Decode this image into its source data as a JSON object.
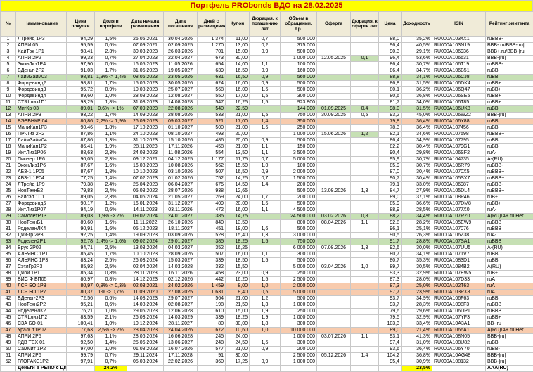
{
  "title": "Портфель PRObonds ВДО на 28.02.2025",
  "columns": [
    "№",
    "Наименование",
    "Цена покупки",
    "Доля в портфеле",
    "Дата начала размещения",
    "Дата погашения",
    "Дней с размещения",
    "Купон",
    "Дюрация, к погашению лет",
    "Объем в обращении, т.р.",
    "Оферта",
    "Дюрация, к оферте лет",
    "Цена",
    "Доходность",
    "ISIN",
    "Рейтинг эмитента"
  ],
  "column_keys": [
    "num",
    "name",
    "buy-price",
    "share",
    "start-date",
    "maturity-date",
    "days",
    "coupon",
    "duration-maturity",
    "volume",
    "offer",
    "duration-offer",
    "price",
    "yield",
    "isin",
    "rating"
  ],
  "rows": [
    [
      "1",
      "ЛТрейд 1Р3",
      "94,29",
      "1,5%",
      "26.05.2021",
      "30.04.2026",
      "1 374",
      "11,00",
      "0,7",
      "500 000",
      "",
      "",
      "88,0",
      "35,2%",
      "RU000A1034X1",
      "ruBBB-"
    ],
    [
      "2",
      "АПРИ 05",
      "95,59",
      "0,6%",
      "07.09.2021",
      "02.09.2025",
      "1 270",
      "13,00",
      "0,2",
      "375 000",
      "",
      "",
      "96,4",
      "40,5%",
      "RU000A103N19",
      "BBB-.ru/BBB-|ru|"
    ],
    [
      "3",
      "ХайТэк 1Р1",
      "98,41",
      "2,3%",
      "30.03.2023",
      "26.03.2026",
      "701",
      "15,00",
      "0,9",
      "500 000",
      "",
      "",
      "90,3",
      "29,1%",
      "RU000A106936",
      "BBB+.ru/BBB-|ru|"
    ],
    [
      "4",
      "АПРИ 2Р2",
      "99,33",
      "0,7%",
      "27.04.2023",
      "22.04.2027",
      "673",
      "30,00",
      "",
      "1 000 000",
      "12.05.2025",
      "0,1",
      "96,4",
      "53,6%",
      "RU000A106631",
      "BBB-|ru|"
    ],
    [
      "5",
      "ЭконЛиз1Р4",
      "97,90",
      "0,6%",
      "16.05.2023",
      "11.05.2026",
      "654",
      "14,00",
      "1,1",
      "100 000",
      "",
      "",
      "86,4",
      "30,7%",
      "RU000A106T19",
      "ruBBB-"
    ],
    [
      "6",
      "БДеньг-2Р2",
      "91,03",
      "1,7%",
      "31.05.2023",
      "19.05.2027",
      "639",
      "16,50",
      "0,9",
      "160 000",
      "",
      "",
      "86,4",
      "34,7%",
      "RU000A106B51",
      "ruBB"
    ],
    [
      "7",
      "ЛаймЗайм03",
      "98,81",
      "1,3% -> 1,4%",
      "08.06.2023",
      "23.05.2026",
      "631",
      "16,50",
      "0,9",
      "560 000",
      "",
      "",
      "88,8",
      "34,1%",
      "RU000A106CJ8",
      "ruBB"
    ],
    [
      "8",
      "Фордевинд2",
      "98,81",
      "1,7%",
      "15.06.2023",
      "30.05.2026",
      "624",
      "16,00",
      "0,9",
      "500 000",
      "",
      "",
      "86,8",
      "31,5%",
      "RU000A106DK4",
      "ruBB+"
    ],
    [
      "9",
      "Фордевинд3",
      "95,72",
      "0,9%",
      "10.08.2023",
      "25.07.2027",
      "568",
      "16,00",
      "1,5",
      "500 000",
      "",
      "",
      "80,1",
      "36,2%",
      "RU000A106Q47",
      "ruBB+"
    ],
    [
      "10",
      "Фордевинд4",
      "89,60",
      "1,0%",
      "28.08.2023",
      "12.08.2027",
      "550",
      "17,00",
      "1,5",
      "300 000",
      "",
      "",
      "80,6",
      "36,8%",
      "RU000A106SE5",
      "ruBB+"
    ],
    [
      "11",
      "CTRLлиз1П1",
      "93,29",
      "1,8%",
      "31.08.2023",
      "14.08.2028",
      "547",
      "16,25",
      "1,5",
      "923 800",
      "",
      "",
      "81,7",
      "34,0%",
      "RU000A106T85",
      "ruBB+"
    ],
    [
      "12",
      "МигКр 03",
      "89,01",
      "0,6% -> 1%",
      "07.09.2023",
      "22.08.2026",
      "540",
      "22,50",
      "",
      "144 000",
      "01.09.2025",
      "0,4",
      "98,0",
      "31,5%",
      "RU000A106UK8",
      "ruBB"
    ],
    [
      "13",
      "АПРИ 2Р3",
      "93,22",
      "1,7%",
      "14.09.2023",
      "28.08.2026",
      "533",
      "21,00",
      "1,5",
      "750 000",
      "30.09.2025",
      "0,5",
      "93,2",
      "45,0%",
      "RU000A106WZ2",
      "BBB-|ru|"
    ],
    [
      "14",
      "ВЭББНКР 04",
      "80,86",
      "2,2% -> 1,9%",
      "26.09.2023",
      "09.03.2027",
      "521",
      "17,00",
      "1,4",
      "350 000",
      "",
      "",
      "79,8",
      "36,4%",
      "RU000A106Y88",
      "ruBB"
    ],
    [
      "15",
      "МаниКап1Р3",
      "90,46",
      "1,8%",
      "17.10.2023",
      "01.10.2027",
      "500",
      "21,00",
      "1,5",
      "250 000",
      "",
      "",
      "78,3",
      "36,4%",
      "RU000A107456",
      "ruBB"
    ],
    [
      "16",
      "ПР-Лиз 2Р2",
      "87,86",
      "1,1%",
      "24.10.2023",
      "08.10.2027",
      "493",
      "20,00",
      "",
      "1 000 000",
      "15.06.2026",
      "1,2",
      "82,1",
      "34,6%",
      "RU000A107598",
      "ruBBB+"
    ],
    [
      "17",
      "ЛаймЗайм04",
      "87,86",
      "1,3%",
      "31.10.2023",
      "15.10.2026",
      "486",
      "20,00",
      "0,9",
      "500 000",
      "",
      "",
      "86,4",
      "34,9%",
      "RU000A107795",
      "ruBB"
    ],
    [
      "18",
      "МаниКап1Р2",
      "86,41",
      "1,9%",
      "28.11.2023",
      "17.11.2026",
      "458",
      "21,00",
      "1,1",
      "150 000",
      "",
      "",
      "82,2",
      "30,4%",
      "RU000A1079G1",
      "ruBB"
    ],
    [
      "19",
      "ИнтЛиз1Р06",
      "88,63",
      "2,3%",
      "24.08.2023",
      "11.08.2026",
      "554",
      "13,50",
      "1,1",
      "3 500 000",
      "",
      "",
      "90,4",
      "29,8%",
      "RU000A106SF2",
      "ruA-"
    ],
    [
      "20",
      "Пионер 1Р6",
      "90,05",
      "2,3%",
      "09.12.2021",
      "04.12.2025",
      "1 177",
      "11,75",
      "0,7",
      "5 000 000",
      "",
      "",
      "95,9",
      "30,7%",
      "RU000A104735",
      "A-(RU)"
    ],
    [
      "21",
      "ЭконЛиз1Р6",
      "87,67",
      "1,6%",
      "16.08.2023",
      "10.08.2026",
      "562",
      "15,50",
      "1,0",
      "100 000",
      "",
      "",
      "85,9",
      "30,7%",
      "RU000A106R79",
      "ruBBB-"
    ],
    [
      "22",
      "АБЗ-1 1Р05",
      "87,67",
      "1,8%",
      "10.10.2023",
      "03.10.2026",
      "507",
      "16,50",
      "0,9",
      "2 000 000",
      "",
      "",
      "87,0",
      "30,4%",
      "RU000A1070X5",
      "ruBBB+"
    ],
    [
      "23",
      "АБЗ-1 1Р04",
      "77,25",
      "1,4%",
      "07.02.2023",
      "01.02.2026",
      "752",
      "14,25",
      "0,7",
      "1 500 000",
      "",
      "",
      "90,7",
      "30,4%",
      "RU000A105SX7",
      "ruBBB+"
    ],
    [
      "24",
      "ЛТрейд 1Р9",
      "79,38",
      "2,4%",
      "25.04.2023",
      "06.04.2027",
      "675",
      "14,50",
      "1,4",
      "200 000",
      "",
      "",
      "79,1",
      "33,0%",
      "RU000A106987",
      "ruBBB-"
    ],
    [
      "25",
      "НовТехнБ2",
      "79,83",
      "2,4%",
      "05.08.2022",
      "28.07.2026",
      "938",
      "12,65",
      "",
      "500 000",
      "13.08.2026",
      "1,3",
      "84,7",
      "27,9%",
      "RU000A105DL4",
      "ruBBB+"
    ],
    [
      "26",
      "Байсэл 1П1",
      "89,05",
      "2,3%",
      "04.06.2024",
      "21.05.2027",
      "269",
      "24,00",
      "1,7",
      "200 000",
      "",
      "",
      "89,0",
      "37,1%",
      "RU000A108P46",
      "ruB+"
    ],
    [
      "27",
      "Фордевинд5",
      "90,17",
      "1,2%",
      "16.01.2024",
      "31.12.2027",
      "409",
      "20,00",
      "1,5",
      "500 000",
      "",
      "",
      "85,9",
      "36,6%",
      "RU000A107DM8",
      "ruBB+"
    ],
    [
      "28",
      "ИнтЛиз1Р07",
      "94,19",
      "0,6%",
      "14.11.2023",
      "03.11.2026",
      "472",
      "16,00",
      "1,1",
      "4 500 000",
      "",
      "",
      "88,9",
      "28,5%",
      "RU000A1077X0",
      "ruA-"
    ],
    [
      "29",
      "СамолетР13",
      "89,03",
      "1,9% -> 2%",
      "09.02.2024",
      "24.01.2027",
      "385",
      "14,75",
      "",
      "24 500 000",
      "03.02.2026",
      "0,8",
      "88,2",
      "34,4%",
      "RU000A107RZ0",
      "A(RU)/A+.ru Нег."
    ],
    [
      "30",
      "НовТехнБ1",
      "89,60",
      "1,6%",
      "11.11.2022",
      "26.10.2026",
      "840",
      "13,50",
      "",
      "800 000",
      "08.04.2026",
      "1,1",
      "92,8",
      "28,2%",
      "RU000A105EW9",
      "ruBBB+"
    ],
    [
      "31",
      "РоделенЛК4",
      "90,91",
      "1,6%",
      "05.12.2023",
      "18.11.2027",
      "451",
      "18,00",
      "1,6",
      "500 000",
      "",
      "",
      "96,1",
      "25,1%",
      "RU000A107076",
      "ruBBB"
    ],
    [
      "32",
      "Джи-гр 2Р3",
      "92,25",
      "1,4%",
      "19.09.2023",
      "03.09.2026",
      "528",
      "15,40",
      "1,3",
      "3 000 000",
      "",
      "",
      "90,5",
      "26,3%",
      "RU000A106Z38",
      "ruA-"
    ],
    [
      "33",
      "Роделен2Р1",
      "92,78",
      "1,4% -> 1,6%",
      "09.02.2024",
      "29.01.2027",
      "385",
      "18,25",
      "1,5",
      "750 000",
      "",
      "",
      "91,7",
      "28,8%",
      "RU000A107SA1",
      "ruBBB"
    ],
    [
      "34",
      "Брус 2Р02",
      "94,71",
      "2,5%",
      "13.03.2024",
      "04.03.2027",
      "352",
      "16,25",
      "",
      "6 000 000",
      "07.08.2026",
      "1,3",
      "92,6",
      "30,0%",
      "RU000A107UU5",
      "A-(RU)"
    ],
    [
      "35",
      "АЛЬЯНС 1Р1",
      "85,45",
      "1,7%",
      "10.10.2023",
      "28.09.2026",
      "507",
      "16,00",
      "1,1",
      "300 000",
      "",
      "",
      "80,7",
      "34,1%",
      "RU000A1071V7",
      "ruBB"
    ],
    [
      "36",
      "АЛЬЯНС 1Р3",
      "83,24",
      "2,5%",
      "26.03.2024",
      "15.03.2027",
      "339",
      "18,50",
      "1,5",
      "500 000",
      "",
      "",
      "80,7",
      "35,3%",
      "RU000A1083D1",
      "ruBB"
    ],
    [
      "37",
      "СэтлГр2Р3",
      "85,92",
      "2,5%",
      "02.04.2024",
      "14.03.2028",
      "332",
      "15,50",
      "",
      "5 000 000",
      "03.04.2026",
      "1,0",
      "89,7",
      "30,5%",
      "RU000A1084B2",
      "A(RU)"
    ],
    [
      "38",
      "Джой 1Р1",
      "85,34",
      "0,8%",
      "28.11.2023",
      "16.11.2026",
      "458",
      "23,00",
      "0,9",
      "250 000",
      "",
      "",
      "93,3",
      "32,9%",
      "RU000A107EW5",
      "ruB+"
    ],
    [
      "39",
      "ВИС Ф БП05",
      "80,97",
      "0,8%",
      "14.12.2023",
      "02.12.2026",
      "442",
      "16,20",
      "1,5",
      "2 500 000",
      "",
      "",
      "87,3",
      "28,0%",
      "RU000A107D33",
      "ruA"
    ],
    [
      "40",
      "ЛСР БО 1Р8",
      "80,97",
      "0,8% -> 0,3%",
      "02.03.2021",
      "24.02.2026",
      "1 459",
      "8,00",
      "1,0",
      "2 000 000",
      "",
      "",
      "87,3",
      "25,0%",
      "RU000A102T63",
      "ruA"
    ],
    [
      "41",
      "ЛСР БО 1Р7",
      "80,37",
      "1% -> 0,7%",
      "11.09.2020",
      "27.08.2025",
      "1 631",
      "8,40",
      "0,5",
      "5 000 000",
      "",
      "",
      "97,7",
      "23,9%",
      "RU000A103PX8",
      "ruA"
    ],
    [
      "42",
      "БДеньг-2Р3",
      "72,56",
      "0,6%",
      "14.08.2023",
      "29.07.2027",
      "564",
      "21,00",
      "1,2",
      "500 000",
      "",
      "",
      "93,7",
      "34,9%",
      "RU000A106F63",
      "ruBB"
    ],
    [
      "43",
      "НовТехн2Р2",
      "95,21",
      "0,6%",
      "14.08.2024",
      "02.08.2027",
      "198",
      "21,50",
      "1,3",
      "1 000 000",
      "",
      "",
      "93,7",
      "28,3%",
      "RU000A1098F3",
      "ruBBB+"
    ],
    [
      "44",
      "РоделенЛК2",
      "76,21",
      "1,0%",
      "29.06.2023",
      "12.06.2028",
      "610",
      "15,00",
      "1,9",
      "250 000",
      "",
      "",
      "79,6",
      "29,6%",
      "RU000A106DP1",
      "ruBBB"
    ],
    [
      "45",
      "CTRLлиз1П2",
      "83,59",
      "2,1%",
      "26.03.2024",
      "14.03.2029",
      "339",
      "18,25",
      "1,9",
      "1 000 000",
      "",
      "",
      "79,5",
      "32,9%",
      "RU000A107YF3",
      "ruBB+"
    ],
    [
      "46",
      "СЗА БО-01",
      "100,41",
      "1,0%",
      "10.12.2024",
      "28.11.2027",
      "80",
      "30,00",
      "1,8",
      "300 000",
      "",
      "",
      "103,3",
      "33,4%",
      "RU000A10A3A1",
      "BB-.ru"
    ],
    [
      "47",
      "УралСт1Р02",
      "77,63",
      "2,5% -> 2%",
      "28.04.2023",
      "24.04.2026",
      "672",
      "10,60",
      "1,0",
      "10 000 000",
      "",
      "",
      "89,0",
      "21,4%",
      "RU000A1066A1",
      "A(RU)/A+.ru Нег."
    ],
    [
      "48",
      "АПРИ 2Р5",
      "97,63",
      "1,1%",
      "28.06.2024",
      "16.06.2028",
      "245",
      "24,00",
      "",
      "1 000 000",
      "03.07.2026",
      "1,1",
      "93,1",
      "41,3%",
      "RU000A108N05",
      "BBB-|ru|"
    ],
    [
      "49",
      "РДВ ТЕХ 01",
      "92,50",
      "1,4%",
      "25.06.2024",
      "13.06.2027",
      "248",
      "24,50",
      "1,5",
      "300 000",
      "",
      "",
      "97,4",
      "31,0%",
      "RU000A108U82",
      "ruBB"
    ],
    [
      "50",
      "Саммит 1Р2",
      "97,00",
      "1,0%",
      "01.08.2023",
      "16.07.2026",
      "577",
      "21,00",
      "0,9",
      "200 000",
      "",
      "",
      "93,6",
      "36,4%",
      "RU000A106Y70",
      "ruBB-"
    ],
    [
      "51",
      "АПРИ 2Р6",
      "99,79",
      "0,7%",
      "29.11.2024",
      "17.11.2028",
      "91",
      "30,00",
      "",
      "2 500 000",
      "05.12.2026",
      "1,4",
      "104,2",
      "36,8%",
      "RU000A10AG48",
      "BBB-|ru|"
    ],
    [
      "52",
      "ГЛОРАКС1Р2",
      "97,91",
      "0,7%",
      "05.03.2024",
      "22.02.2026",
      "360",
      "17,25",
      "0,9",
      "1 000 000",
      "",
      "",
      "95,4",
      "30,9%",
      "RU000A108132",
      "BBB-|ru|"
    ]
  ],
  "footer": [
    "",
    "Деньги в РЕПО с ЦК",
    "",
    "24,2%",
    "",
    "",
    "",
    "",
    "",
    "",
    "",
    "",
    "",
    "23,5%",
    "",
    "AAA(RU)"
  ],
  "footer_yellow_cols": [
    3,
    13
  ],
  "row_highlights": {
    "7": "green",
    "12": "green",
    "14": "orange",
    "29": "green",
    "33": "green",
    "40": "orange",
    "41": "orange",
    "47": "orange"
  },
  "cell_highlights": [
    {
      "row": "4",
      "col": 11,
      "color": "green"
    },
    {
      "row": "16",
      "col": 11,
      "color": "green"
    }
  ],
  "colors": {
    "title_bg": "#FFFF00",
    "title_text": "#C00000",
    "header_bg": "#F0EBD8",
    "green": "#C6E0B4",
    "orange": "#F8CBAD",
    "yellow": "#FFFF00",
    "grid": "#C8C8C8"
  }
}
